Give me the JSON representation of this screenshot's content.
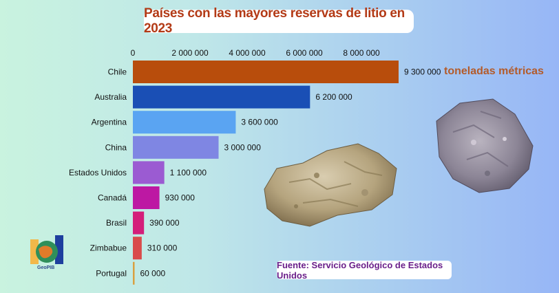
{
  "title": "Países con las mayores reservas de litio en 2023",
  "unit_label": "toneladas métricas",
  "source": "Fuente: Servicio Geológico de Estados Unidos",
  "logo_text": "GeoPIB",
  "chart_data": {
    "type": "bar",
    "orientation": "horizontal",
    "title": "Países con las mayores reservas de litio en 2023",
    "categories": [
      "Chile",
      "Australia",
      "Argentina",
      "China",
      "Estados Unidos",
      "Canadá",
      "Brasil",
      "Zimbabue",
      "Portugal"
    ],
    "values": [
      9300000,
      6200000,
      3600000,
      3000000,
      1100000,
      930000,
      390000,
      310000,
      60000
    ],
    "value_labels": [
      "9 300 000",
      "6 200 000",
      "3 600 000",
      "3 000 000",
      "1 100 000",
      "930 000",
      "390 000",
      "310 000",
      "60 000"
    ],
    "colors": [
      "#b84d0c",
      "#1a4fb5",
      "#5aa4f2",
      "#7f86e3",
      "#9b5bd2",
      "#bd18a3",
      "#d41e7a",
      "#d94b4b",
      "#d9a040"
    ],
    "xticks": [
      0,
      2000000,
      4000000,
      6000000,
      8000000
    ],
    "xtick_labels": [
      "0",
      "2 000 000",
      "4 000 000",
      "6 000 000",
      "8 000 000"
    ],
    "xlim": [
      0,
      9300000
    ],
    "xaxis_position": "top",
    "grid": false,
    "legend": "none"
  }
}
